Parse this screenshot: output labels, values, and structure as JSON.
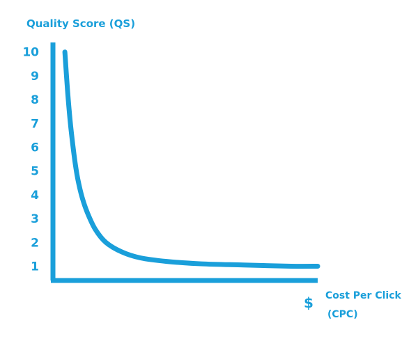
{
  "chart_data": {
    "type": "line",
    "title": "",
    "ylabel": "Quality Score (QS)",
    "xlabel_symbol": "$",
    "xlabel_line1": "Cost Per Click",
    "xlabel_line2": "(CPC)",
    "ylim": [
      0.4,
      10.4
    ],
    "xlim": [
      0,
      10
    ],
    "yticks": [
      {
        "value": 10,
        "label": "10"
      },
      {
        "value": 9,
        "label": "9"
      },
      {
        "value": 8,
        "label": "8"
      },
      {
        "value": 7,
        "label": "7"
      },
      {
        "value": 6,
        "label": "6"
      },
      {
        "value": 5,
        "label": "5"
      },
      {
        "value": 4,
        "label": "4"
      },
      {
        "value": 3,
        "label": "3"
      },
      {
        "value": 2,
        "label": "2"
      },
      {
        "value": 1,
        "label": "1"
      }
    ],
    "grid": false,
    "legend": "none",
    "series": [
      {
        "x": [
          0.45,
          0.55,
          0.65,
          0.75,
          0.85,
          0.95,
          1.1,
          1.3,
          1.6,
          2.0,
          2.6,
          3.3,
          4.3,
          5.6,
          7.2,
          9.0,
          10.0
        ],
        "y": [
          10.0,
          8.4,
          7.1,
          6.1,
          5.25,
          4.6,
          3.9,
          3.25,
          2.55,
          2.0,
          1.6,
          1.35,
          1.2,
          1.1,
          1.05,
          1.0,
          1.0
        ]
      }
    ],
    "colors": {
      "axis": "#1a9fda",
      "line": "#1a9fda",
      "text": "#1a9fda"
    }
  }
}
